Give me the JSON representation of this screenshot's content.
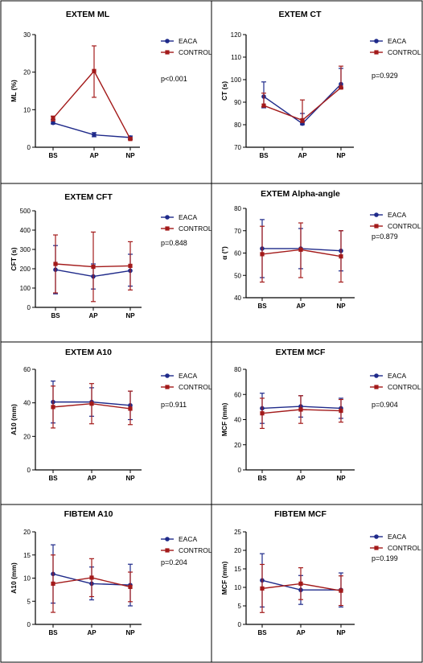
{
  "colors": {
    "eaca": "#1f2a8a",
    "control": "#a31a1a",
    "axis": "#000000",
    "border": "#000000"
  },
  "chart_data": [
    {
      "type": "line",
      "title": "EXTEM ML",
      "ylabel": "ML (%)",
      "categories": [
        "BS",
        "AP",
        "NP"
      ],
      "ylim": [
        0,
        30
      ],
      "yticks": [
        0,
        10,
        20,
        30
      ],
      "pvalue": "p<0.001",
      "legend": "right",
      "series": [
        {
          "name": "EACA",
          "values": [
            6.5,
            3.3,
            2.6
          ],
          "err_low": [
            6.2,
            2.8,
            2.2
          ],
          "err_high": [
            7.4,
            3.9,
            3.0
          ]
        },
        {
          "name": "CONTROL",
          "values": [
            7.7,
            20.3,
            2.2
          ],
          "err_low": [
            7.0,
            13.3,
            2.0
          ],
          "err_high": [
            8.3,
            27.0,
            2.6
          ]
        }
      ]
    },
    {
      "type": "line",
      "title": "EXTEM CT",
      "ylabel": "CT (s)",
      "categories": [
        "BS",
        "AP",
        "NP"
      ],
      "ylim": [
        70,
        120
      ],
      "yticks": [
        70,
        80,
        90,
        100,
        110,
        120
      ],
      "pvalue": "p=0.929",
      "legend": "right",
      "series": [
        {
          "name": "EACA",
          "values": [
            92.5,
            80.5,
            98.0
          ],
          "err_low": [
            87.5,
            80.0,
            96.5
          ],
          "err_high": [
            99.0,
            85.0,
            105.0
          ]
        },
        {
          "name": "CONTROL",
          "values": [
            88.5,
            82.0,
            96.5
          ],
          "err_low": [
            88.0,
            81.0,
            96.0
          ],
          "err_high": [
            94.0,
            91.0,
            106.0
          ]
        }
      ]
    },
    {
      "type": "line",
      "title": "EXTEM CFT",
      "ylabel": "CFT (s)",
      "categories": [
        "BS",
        "AP",
        "NP"
      ],
      "ylim": [
        0,
        500
      ],
      "yticks": [
        0,
        100,
        200,
        300,
        400,
        500
      ],
      "pvalue": "p=0.848",
      "legend": "right",
      "series": [
        {
          "name": "EACA",
          "values": [
            195,
            160,
            190
          ],
          "err_low": [
            70,
            95,
            110
          ],
          "err_high": [
            320,
            225,
            275
          ]
        },
        {
          "name": "CONTROL",
          "values": [
            225,
            210,
            215
          ],
          "err_low": [
            75,
            30,
            90
          ],
          "err_high": [
            375,
            390,
            340
          ]
        }
      ]
    },
    {
      "type": "line",
      "title": "EXTEM Alpha-angle",
      "ylabel": "α (°)",
      "categories": [
        "BS",
        "AP",
        "NP"
      ],
      "ylim": [
        40,
        80
      ],
      "yticks": [
        40,
        50,
        60,
        70,
        80
      ],
      "pvalue": "p=0.879",
      "legend": "right",
      "series": [
        {
          "name": "EACA",
          "values": [
            62,
            62,
            61
          ],
          "err_low": [
            49,
            53,
            52
          ],
          "err_high": [
            75,
            71,
            70
          ]
        },
        {
          "name": "CONTROL",
          "values": [
            59.5,
            61.5,
            58.5
          ],
          "err_low": [
            47,
            49,
            47
          ],
          "err_high": [
            72,
            73.5,
            70
          ]
        }
      ]
    },
    {
      "type": "line",
      "title": "EXTEM A10",
      "ylabel": "A10 (mm)",
      "categories": [
        "BS",
        "AP",
        "NP"
      ],
      "ylim": [
        0,
        60
      ],
      "yticks": [
        0,
        20,
        40,
        60
      ],
      "pvalue": "p=0.911",
      "legend": "right",
      "series": [
        {
          "name": "EACA",
          "values": [
            40.5,
            40.5,
            38.5
          ],
          "err_low": [
            28,
            32,
            30
          ],
          "err_high": [
            53,
            49,
            47
          ]
        },
        {
          "name": "CONTROL",
          "values": [
            37.5,
            39.5,
            36.5
          ],
          "err_low": [
            25,
            27.5,
            27
          ],
          "err_high": [
            50,
            51.5,
            47
          ]
        }
      ]
    },
    {
      "type": "line",
      "title": "EXTEM MCF",
      "ylabel": "MCF (mm)",
      "categories": [
        "BS",
        "AP",
        "NP"
      ],
      "ylim": [
        0,
        80
      ],
      "yticks": [
        0,
        20,
        40,
        60,
        80
      ],
      "pvalue": "p=0.904",
      "legend": "right",
      "series": [
        {
          "name": "EACA",
          "values": [
            49,
            50.5,
            49
          ],
          "err_low": [
            37,
            42,
            41
          ],
          "err_high": [
            61,
            59,
            57
          ]
        },
        {
          "name": "CONTROL",
          "values": [
            45,
            48,
            47
          ],
          "err_low": [
            33,
            37,
            38
          ],
          "err_high": [
            57,
            59,
            56
          ]
        }
      ]
    },
    {
      "type": "line",
      "title": "FIBTEM A10",
      "ylabel": "A10 (mm)",
      "categories": [
        "BS",
        "AP",
        "NP"
      ],
      "ylim": [
        0,
        20
      ],
      "yticks": [
        0,
        5,
        10,
        15,
        20
      ],
      "pvalue": "p=0.204",
      "legend": "right",
      "series": [
        {
          "name": "EACA",
          "values": [
            10.9,
            8.8,
            8.5
          ],
          "err_low": [
            4.6,
            5.3,
            4.0
          ],
          "err_high": [
            17.2,
            12.4,
            13.0
          ]
        },
        {
          "name": "CONTROL",
          "values": [
            8.8,
            10.1,
            8.1
          ],
          "err_low": [
            2.6,
            6.0,
            4.9
          ],
          "err_high": [
            15.0,
            14.2,
            11.3
          ]
        }
      ]
    },
    {
      "type": "line",
      "title": "FIBTEM MCF",
      "ylabel": "MCF (mm)",
      "categories": [
        "BS",
        "AP",
        "NP"
      ],
      "ylim": [
        0,
        25
      ],
      "yticks": [
        0,
        5,
        10,
        15,
        20,
        25
      ],
      "pvalue": "p=0.199",
      "legend": "right",
      "series": [
        {
          "name": "EACA",
          "values": [
            11.9,
            9.3,
            9.3
          ],
          "err_low": [
            4.7,
            5.4,
            4.7
          ],
          "err_high": [
            19.1,
            13.2,
            13.9
          ]
        },
        {
          "name": "CONTROL",
          "values": [
            9.7,
            11.0,
            9.1
          ],
          "err_low": [
            3.2,
            6.7,
            5.1
          ],
          "err_high": [
            16.2,
            15.3,
            13.1
          ]
        }
      ]
    }
  ]
}
